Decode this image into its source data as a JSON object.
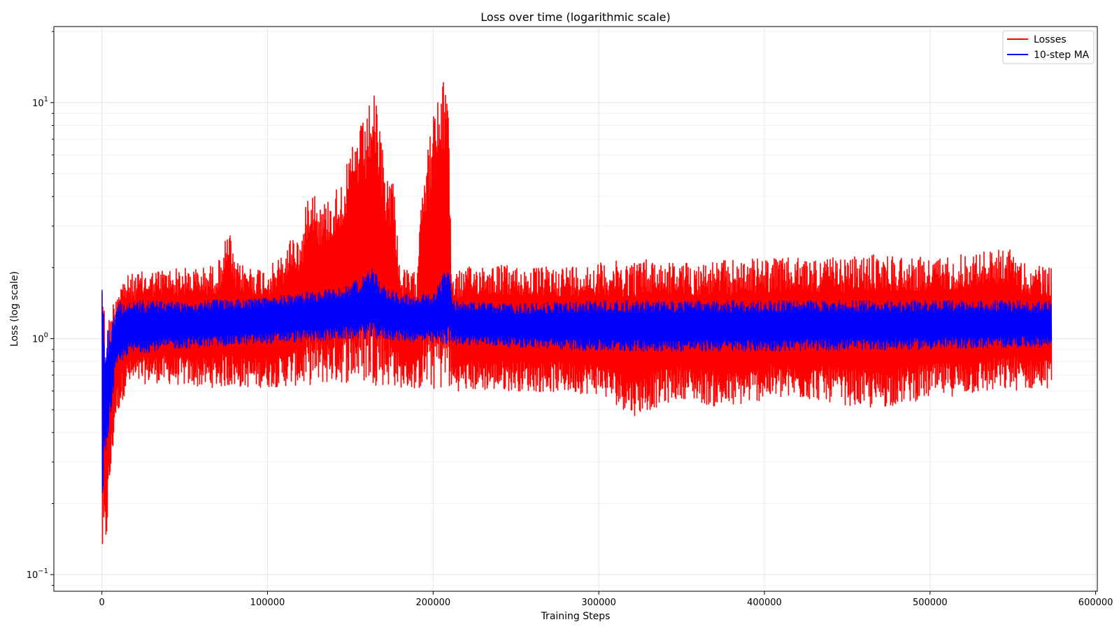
{
  "chart_data": {
    "type": "line",
    "title": "Loss over time (logarithmic scale)",
    "xlabel": "Training Steps",
    "ylabel": "Loss (log scale)",
    "yscale": "log",
    "xlim": [
      -29000,
      601000
    ],
    "ylim": [
      0.085,
      21
    ],
    "x_ticks": [
      0,
      100000,
      200000,
      300000,
      400000,
      500000,
      600000
    ],
    "x_tick_labels": [
      "0",
      "100000",
      "200000",
      "300000",
      "400000",
      "500000",
      "600000"
    ],
    "y_ticks": [
      {
        "value": 0.1,
        "base": "10",
        "exp": "−1"
      },
      {
        "value": 1,
        "base": "10",
        "exp": "0"
      },
      {
        "value": 10,
        "base": "10",
        "exp": "1"
      }
    ],
    "grid": true,
    "legend_position": "top-right",
    "series": [
      {
        "name": "Losses",
        "color": "#ff0000",
        "x_range": [
          0,
          573000
        ],
        "upper_envelope": [
          [
            0,
            2.85
          ],
          [
            2000,
            1.1
          ],
          [
            5000,
            1.3
          ],
          [
            10000,
            1.8
          ],
          [
            20000,
            1.9
          ],
          [
            40000,
            2.0
          ],
          [
            60000,
            2.0
          ],
          [
            70000,
            2.1
          ],
          [
            77000,
            2.95
          ],
          [
            80000,
            2.1
          ],
          [
            100000,
            2.0
          ],
          [
            110000,
            2.3
          ],
          [
            115000,
            2.85
          ],
          [
            120000,
            2.6
          ],
          [
            126000,
            5.0
          ],
          [
            132000,
            3.7
          ],
          [
            140000,
            4.2
          ],
          [
            148000,
            5.5
          ],
          [
            155000,
            8.0
          ],
          [
            160000,
            8.5
          ],
          [
            163000,
            12.0
          ],
          [
            166000,
            9.5
          ],
          [
            172000,
            5.0
          ],
          [
            176000,
            5.0
          ],
          [
            180000,
            2.0
          ],
          [
            190000,
            1.9
          ],
          [
            193000,
            5.2
          ],
          [
            197000,
            6.5
          ],
          [
            200000,
            9.3
          ],
          [
            203000,
            10.5
          ],
          [
            206000,
            12.0
          ],
          [
            209000,
            16.0
          ],
          [
            211000,
            1.9
          ],
          [
            230000,
            2.1
          ],
          [
            260000,
            2.0
          ],
          [
            300000,
            2.1
          ],
          [
            330000,
            2.2
          ],
          [
            350000,
            2.1
          ],
          [
            400000,
            2.2
          ],
          [
            450000,
            2.2
          ],
          [
            470000,
            2.3
          ],
          [
            500000,
            2.2
          ],
          [
            551000,
            2.45
          ],
          [
            555000,
            2.1
          ],
          [
            573000,
            2.0
          ]
        ],
        "lower_envelope": [
          [
            0,
            0.105
          ],
          [
            2000,
            0.115
          ],
          [
            4000,
            0.2
          ],
          [
            8000,
            0.45
          ],
          [
            15000,
            0.62
          ],
          [
            30000,
            0.65
          ],
          [
            60000,
            0.62
          ],
          [
            100000,
            0.62
          ],
          [
            150000,
            0.65
          ],
          [
            200000,
            0.6
          ],
          [
            250000,
            0.6
          ],
          [
            300000,
            0.58
          ],
          [
            321000,
            0.47
          ],
          [
            350000,
            0.56
          ],
          [
            375000,
            0.5
          ],
          [
            400000,
            0.55
          ],
          [
            430000,
            0.55
          ],
          [
            466000,
            0.5
          ],
          [
            500000,
            0.56
          ],
          [
            573000,
            0.62
          ]
        ]
      },
      {
        "name": "10-step MA",
        "color": "#0000ff",
        "x_range": [
          0,
          573000
        ],
        "upper_envelope": [
          [
            0,
            2.35
          ],
          [
            2000,
            1.0
          ],
          [
            6000,
            1.2
          ],
          [
            10000,
            1.45
          ],
          [
            30000,
            1.45
          ],
          [
            60000,
            1.45
          ],
          [
            100000,
            1.5
          ],
          [
            130000,
            1.6
          ],
          [
            150000,
            1.7
          ],
          [
            163000,
            2.0
          ],
          [
            170000,
            1.7
          ],
          [
            180000,
            1.55
          ],
          [
            200000,
            1.55
          ],
          [
            209000,
            2.05
          ],
          [
            212000,
            1.45
          ],
          [
            250000,
            1.4
          ],
          [
            300000,
            1.45
          ],
          [
            400000,
            1.45
          ],
          [
            500000,
            1.45
          ],
          [
            573000,
            1.45
          ]
        ],
        "lower_envelope": [
          [
            0,
            0.2
          ],
          [
            3000,
            0.35
          ],
          [
            8000,
            0.7
          ],
          [
            15000,
            0.85
          ],
          [
            40000,
            0.9
          ],
          [
            100000,
            0.95
          ],
          [
            160000,
            1.0
          ],
          [
            200000,
            0.95
          ],
          [
            250000,
            0.92
          ],
          [
            300000,
            0.88
          ],
          [
            400000,
            0.88
          ],
          [
            500000,
            0.9
          ],
          [
            573000,
            0.92
          ]
        ]
      }
    ]
  }
}
